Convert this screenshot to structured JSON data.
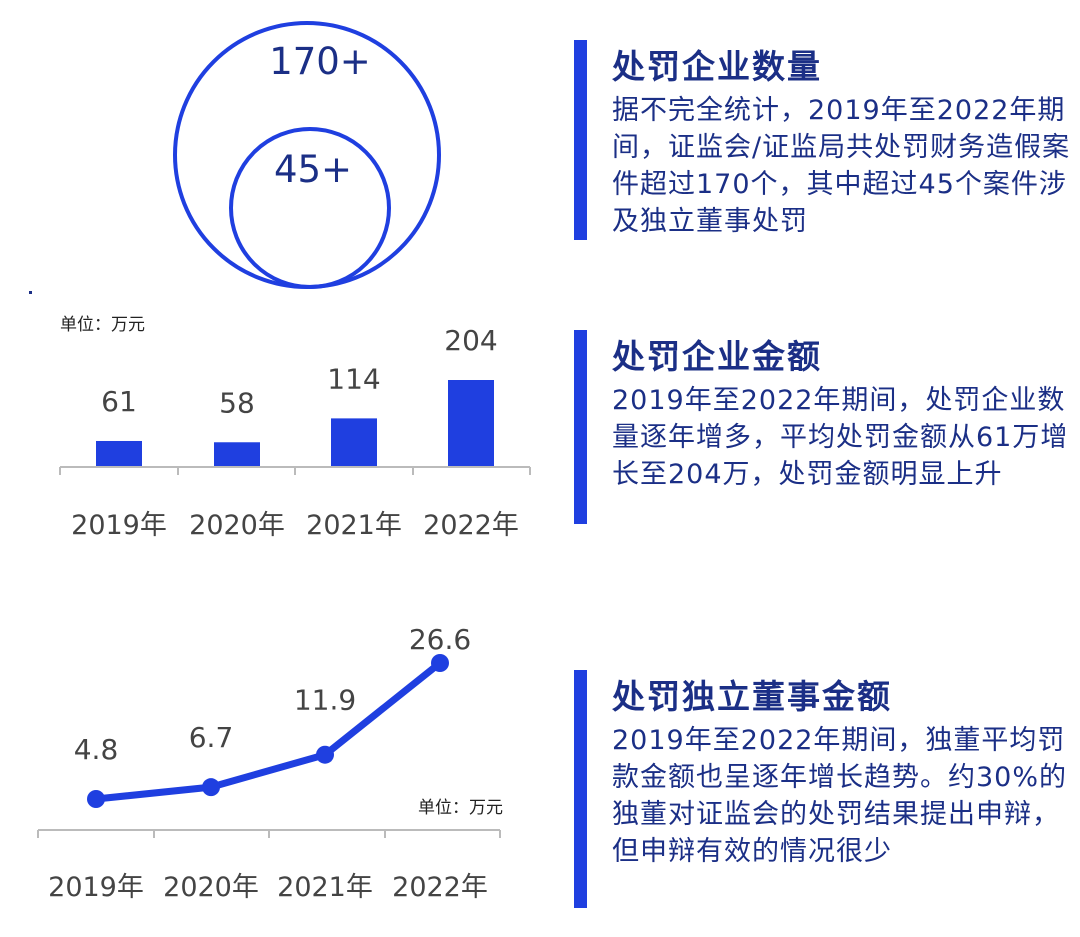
{
  "colors": {
    "accent": "#1f3fe0",
    "text_dark": "#1b2f86",
    "label_gray": "#444444",
    "axis_gray": "#bbbbbb"
  },
  "circles": {
    "outer_label": "170+",
    "inner_label": "45+"
  },
  "panels": [
    {
      "title": "处罚企业数量",
      "body": "据不完全统计，2019年至2022年期间，证监会/证监局共处罚财务造假案件超过170个，其中超过45个案件涉及独立董事处罚"
    },
    {
      "title": "处罚企业金额",
      "body": "2019年至2022年期间，处罚企业数量逐年增多，平均处罚金额从61万增长至204万，处罚金额明显上升"
    },
    {
      "title": "处罚独立董事金额",
      "body": "2019年至2022年期间，独董平均罚款金额也呈逐年增长趋势。约30%的独董对证监会的处罚结果提出申辩，但申辩有效的情况很少"
    }
  ],
  "chart_data": [
    {
      "type": "bar",
      "unit_label": "单位：万元",
      "categories": [
        "2019年",
        "2020年",
        "2021年",
        "2022年"
      ],
      "values": [
        61,
        58,
        114,
        204
      ],
      "value_labels": [
        "61",
        "58",
        "114",
        "204"
      ],
      "ylim": [
        0,
        204
      ]
    },
    {
      "type": "line",
      "unit_label": "单位：万元",
      "categories": [
        "2019年",
        "2020年",
        "2021年",
        "2022年"
      ],
      "values": [
        4.8,
        6.7,
        11.9,
        26.6
      ],
      "value_labels": [
        "4.8",
        "6.7",
        "11.9",
        "26.6"
      ],
      "ylim": [
        4.8,
        26.6
      ]
    }
  ]
}
